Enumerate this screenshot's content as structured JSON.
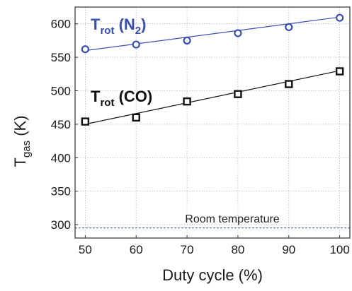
{
  "chart_data": {
    "type": "scatter",
    "xlabel": "Duty cycle (%)",
    "ylabel": {
      "main": "T",
      "sub": "gas",
      "rest": " (K)"
    },
    "xlim": [
      48,
      102
    ],
    "ylim": [
      280,
      625
    ],
    "x_ticks": [
      50,
      60,
      70,
      80,
      90,
      100
    ],
    "y_ticks": [
      300,
      350,
      400,
      450,
      500,
      550,
      600
    ],
    "grid": true,
    "series": [
      {
        "label": {
          "main": "T",
          "sub1": "rot",
          "mid": " (N",
          "sub2": "2",
          "end": ")"
        },
        "color": "#3a4fb0",
        "marker": "circle",
        "x": [
          50,
          60,
          70,
          80,
          90,
          100
        ],
        "y": [
          562,
          569,
          575,
          586,
          595,
          609
        ],
        "fit_line": [
          [
            50,
            560
          ],
          [
            100,
            610
          ]
        ]
      },
      {
        "label": {
          "main": "T",
          "sub1": "rot",
          "mid": " (CO)",
          "sub2": "",
          "end": ""
        },
        "color": "#111111",
        "marker": "square",
        "x": [
          50,
          60,
          70,
          80,
          90,
          100
        ],
        "y": [
          454,
          460,
          484,
          495,
          510,
          529
        ],
        "fit_line": [
          [
            50,
            450
          ],
          [
            100,
            530
          ]
        ]
      }
    ],
    "reference_line": {
      "label": "Room temperature",
      "y": 295,
      "color": "#3a5a8c"
    }
  }
}
